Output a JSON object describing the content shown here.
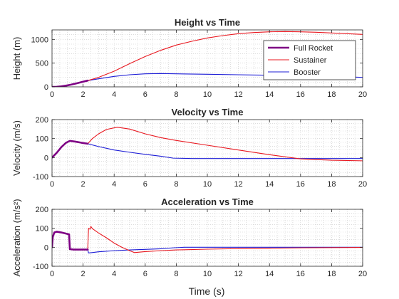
{
  "colors": {
    "full_rocket": "#7E0084",
    "sustainer": "#E8171F",
    "booster": "#1C1CD6",
    "axis": "#262626",
    "grid_minor": "#c8c8c8"
  },
  "xlabel": "Time (s)",
  "chart_data": [
    {
      "type": "line",
      "title": "Height vs Time",
      "ylabel": "Height (m)",
      "xlim": [
        0,
        20
      ],
      "ylim": [
        0,
        1200
      ],
      "xticks": [
        0,
        2,
        4,
        6,
        8,
        10,
        12,
        14,
        16,
        18,
        20
      ],
      "yticks": [
        0,
        500,
        1000
      ],
      "grid": "minor-dotted",
      "legend": {
        "placement": "upper-right",
        "entries": [
          "Full Rocket",
          "Sustainer",
          "Booster"
        ]
      },
      "series": [
        {
          "name": "Full Rocket",
          "color_key": "full_rocket",
          "width": 2.6,
          "points": [
            [
              0,
              0
            ],
            [
              0.3,
              2
            ],
            [
              0.6,
              10
            ],
            [
              0.9,
              25
            ],
            [
              1.2,
              45
            ],
            [
              1.6,
              75
            ],
            [
              2.0,
              108
            ],
            [
              2.3,
              132
            ]
          ]
        },
        {
          "name": "Sustainer",
          "color_key": "sustainer",
          "width": 1.1,
          "points": [
            [
              2.3,
              132
            ],
            [
              3,
              200
            ],
            [
              4,
              330
            ],
            [
              5,
              490
            ],
            [
              6,
              640
            ],
            [
              7,
              770
            ],
            [
              8,
              880
            ],
            [
              9,
              960
            ],
            [
              10,
              1030
            ],
            [
              11,
              1080
            ],
            [
              12,
              1120
            ],
            [
              13,
              1145
            ],
            [
              14,
              1160
            ],
            [
              15,
              1165
            ],
            [
              16,
              1160
            ],
            [
              17,
              1150
            ],
            [
              18,
              1135
            ],
            [
              19,
              1120
            ],
            [
              20,
              1105
            ]
          ]
        },
        {
          "name": "Booster",
          "color_key": "booster",
          "width": 1.1,
          "points": [
            [
              2.3,
              132
            ],
            [
              3,
              170
            ],
            [
              4,
              220
            ],
            [
              5,
              255
            ],
            [
              6,
              275
            ],
            [
              7,
              280
            ],
            [
              8,
              275
            ],
            [
              10,
              265
            ],
            [
              12,
              255
            ],
            [
              14,
              245
            ],
            [
              16,
              235
            ],
            [
              18,
              220
            ],
            [
              20,
              200
            ]
          ]
        }
      ]
    },
    {
      "type": "line",
      "title": "Velocity vs Time",
      "ylabel": "Velocity (m/s)",
      "xlim": [
        0,
        20
      ],
      "ylim": [
        -100,
        200
      ],
      "xticks": [
        0,
        2,
        4,
        6,
        8,
        10,
        12,
        14,
        16,
        18,
        20
      ],
      "yticks": [
        -100,
        0,
        100,
        200
      ],
      "grid": "minor-dotted",
      "series": [
        {
          "name": "Full Rocket",
          "color_key": "full_rocket",
          "width": 2.6,
          "points": [
            [
              0,
              0
            ],
            [
              0.3,
              25
            ],
            [
              0.6,
              55
            ],
            [
              0.9,
              78
            ],
            [
              1.15,
              88
            ],
            [
              1.5,
              84
            ],
            [
              1.9,
              78
            ],
            [
              2.3,
              73
            ]
          ]
        },
        {
          "name": "Sustainer",
          "color_key": "sustainer",
          "width": 1.1,
          "points": [
            [
              2.3,
              73
            ],
            [
              2.6,
              100
            ],
            [
              3,
              125
            ],
            [
              3.5,
              148
            ],
            [
              4.2,
              160
            ],
            [
              5,
              150
            ],
            [
              6,
              125
            ],
            [
              7,
              105
            ],
            [
              8,
              90
            ],
            [
              10,
              65
            ],
            [
              12,
              40
            ],
            [
              14,
              15
            ],
            [
              16,
              -7
            ],
            [
              18,
              -14
            ],
            [
              20,
              -17
            ]
          ]
        },
        {
          "name": "Booster",
          "color_key": "booster",
          "width": 1.1,
          "points": [
            [
              2.3,
              73
            ],
            [
              3,
              58
            ],
            [
              4,
              40
            ],
            [
              5,
              28
            ],
            [
              6,
              17
            ],
            [
              7,
              7
            ],
            [
              7.8,
              -3
            ],
            [
              9,
              -5
            ],
            [
              12,
              -5
            ],
            [
              16,
              -5
            ],
            [
              20,
              -5
            ]
          ]
        }
      ]
    },
    {
      "type": "line",
      "title": "Acceleration vs Time",
      "ylabel": "Acceleration (m/s²)",
      "xlim": [
        0,
        20
      ],
      "ylim": [
        -100,
        200
      ],
      "xticks": [
        0,
        2,
        4,
        6,
        8,
        10,
        12,
        14,
        16,
        18,
        20
      ],
      "yticks": [
        -100,
        0,
        100,
        200
      ],
      "grid": "minor-dotted",
      "series": [
        {
          "name": "Full Rocket",
          "color_key": "full_rocket",
          "width": 2.6,
          "points": [
            [
              0,
              0
            ],
            [
              0.05,
              55
            ],
            [
              0.15,
              78
            ],
            [
              0.3,
              82
            ],
            [
              0.6,
              78
            ],
            [
              0.9,
              72
            ],
            [
              1.1,
              68
            ],
            [
              1.15,
              -10
            ],
            [
              1.4,
              -12
            ],
            [
              2.3,
              -12
            ]
          ]
        },
        {
          "name": "Sustainer",
          "color_key": "sustainer",
          "width": 1.1,
          "points": [
            [
              2.3,
              -12
            ],
            [
              2.35,
              100
            ],
            [
              2.45,
              95
            ],
            [
              2.5,
              110
            ],
            [
              2.6,
              98
            ],
            [
              3,
              75
            ],
            [
              3.5,
              50
            ],
            [
              4,
              22
            ],
            [
              4.5,
              0
            ],
            [
              5,
              -18
            ],
            [
              5.3,
              -28
            ],
            [
              6,
              -23
            ],
            [
              7,
              -18
            ],
            [
              8,
              -14
            ],
            [
              10,
              -10
            ],
            [
              12,
              -7
            ],
            [
              14,
              -5
            ],
            [
              16,
              -3
            ],
            [
              20,
              -1
            ]
          ]
        },
        {
          "name": "Booster",
          "color_key": "booster",
          "width": 1.1,
          "points": [
            [
              2.3,
              -12
            ],
            [
              2.35,
              -30
            ],
            [
              3,
              -24
            ],
            [
              4,
              -18
            ],
            [
              5,
              -14
            ],
            [
              6,
              -11
            ],
            [
              7,
              -8
            ],
            [
              7.8,
              -3
            ],
            [
              8.5,
              0
            ],
            [
              12,
              0
            ],
            [
              20,
              0
            ]
          ]
        }
      ]
    }
  ]
}
